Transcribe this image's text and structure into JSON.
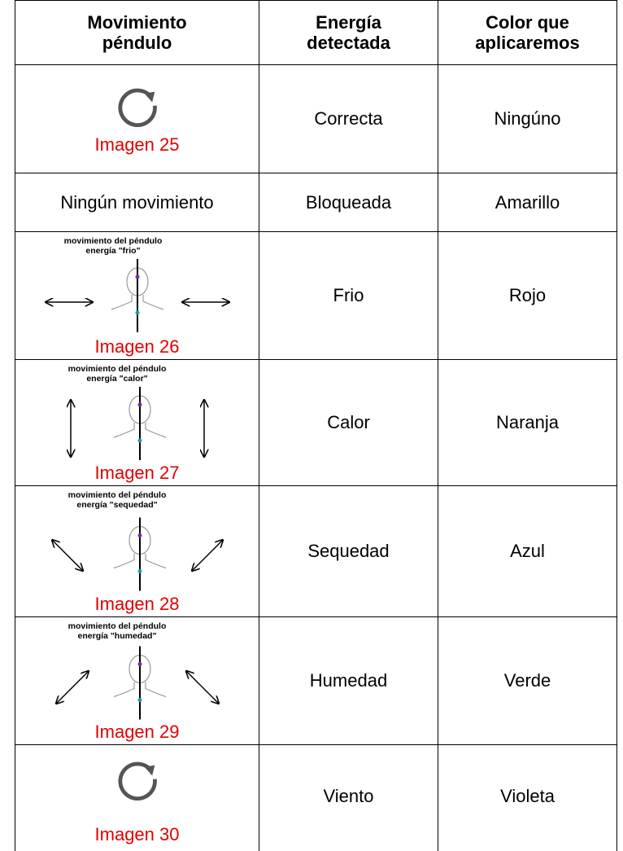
{
  "table": {
    "header": [
      [
        "Movimiento",
        "péndulo"
      ],
      [
        "Energía",
        "detectada"
      ],
      [
        "Color que",
        "aplicaremos"
      ]
    ],
    "rows": [
      {
        "movement": {
          "caption": "Imagen 25"
        },
        "energy": "Correcta",
        "color": "Ningúno"
      },
      {
        "movement": {
          "text": "Ningún movimiento"
        },
        "energy": "Bloqueada",
        "color": "Amarillo"
      },
      {
        "movement": {
          "figure_lines": [
            "movimiento del péndulo",
            "energía \"frio\""
          ],
          "caption": "Imagen 26"
        },
        "energy": "Frio",
        "color": "Rojo"
      },
      {
        "movement": {
          "figure_lines": [
            "movimiento del péndulo",
            "energía \"calor\""
          ],
          "caption": "Imagen 27"
        },
        "energy": "Calor",
        "color": "Naranja"
      },
      {
        "movement": {
          "figure_lines": [
            "movimiento del péndulo",
            "energía \"sequedad\""
          ],
          "caption": "Imagen 28"
        },
        "energy": "Sequedad",
        "color": "Azul"
      },
      {
        "movement": {
          "figure_lines": [
            "movimiento del péndulo",
            "energía \"humedad\""
          ],
          "caption": "Imagen 29"
        },
        "energy": "Humedad",
        "color": "Verde"
      },
      {
        "movement": {
          "caption": "Imagen 30"
        },
        "energy": "Viento",
        "color": "Violeta"
      }
    ]
  }
}
